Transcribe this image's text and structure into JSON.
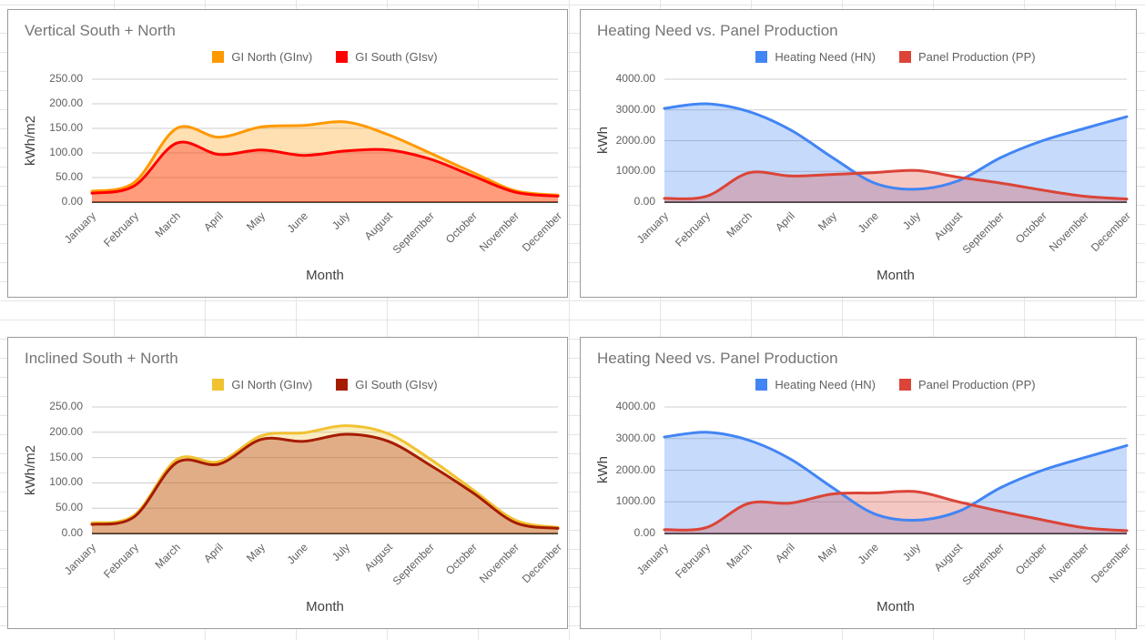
{
  "months": [
    "January",
    "February",
    "March",
    "April",
    "May",
    "June",
    "July",
    "August",
    "September",
    "October",
    "November",
    "December"
  ],
  "chart_data": [
    {
      "position": "top-left",
      "type": "area",
      "title": "Vertical South + North",
      "xlabel": "Month",
      "ylabel": "kWh/m2",
      "y_ticks": [
        "250.00",
        "200.00",
        "150.00",
        "100.00",
        "50.00",
        "0.00"
      ],
      "y_max": 250,
      "ylim": [
        0,
        250
      ],
      "grid": true,
      "legend_position": "top",
      "categories": [
        "January",
        "February",
        "March",
        "April",
        "May",
        "June",
        "July",
        "August",
        "September",
        "October",
        "November",
        "December"
      ],
      "series": [
        {
          "name": "GI North (GInv)",
          "color": "#FF9900",
          "fill_opacity": 0.3,
          "values": [
            22,
            40,
            150,
            132,
            153,
            156,
            163,
            137,
            99,
            60,
            23,
            14
          ]
        },
        {
          "name": "GI South (GIsv)",
          "color": "#FF0000",
          "fill_opacity": 0.3,
          "values": [
            18,
            33,
            120,
            97,
            106,
            95,
            104,
            106,
            87,
            53,
            20,
            12
          ]
        }
      ]
    },
    {
      "position": "top-right",
      "type": "area",
      "title": "Heating Need vs. Panel Production",
      "xlabel": "Month",
      "ylabel": "kWh",
      "y_ticks": [
        "4000.00",
        "3000.00",
        "2000.00",
        "1000.00",
        "0.00"
      ],
      "y_max": 4000,
      "ylim": [
        0,
        4000
      ],
      "grid": true,
      "legend_position": "top",
      "categories": [
        "January",
        "February",
        "March",
        "April",
        "May",
        "June",
        "July",
        "August",
        "September",
        "October",
        "November",
        "December"
      ],
      "series": [
        {
          "name": "Heating Need (HN)",
          "color": "#4285F4",
          "fill_opacity": 0.3,
          "values": [
            3050,
            3200,
            2950,
            2350,
            1450,
            620,
            420,
            700,
            1450,
            2000,
            2400,
            2780
          ]
        },
        {
          "name": "Panel Production (PP)",
          "color": "#DB4437",
          "fill_opacity": 0.3,
          "values": [
            120,
            190,
            950,
            850,
            900,
            960,
            1030,
            810,
            620,
            390,
            190,
            100
          ]
        }
      ]
    },
    {
      "position": "bottom-left",
      "type": "area",
      "title": "Inclined South + North",
      "xlabel": "Month",
      "ylabel": "kWh/m2",
      "y_ticks": [
        "250.00",
        "200.00",
        "150.00",
        "100.00",
        "50.00",
        "0.00"
      ],
      "y_max": 250,
      "ylim": [
        0,
        250
      ],
      "grid": true,
      "legend_position": "top",
      "categories": [
        "January",
        "February",
        "March",
        "April",
        "May",
        "June",
        "July",
        "August",
        "September",
        "October",
        "November",
        "December"
      ],
      "series": [
        {
          "name": "GI North (GInv)",
          "color": "#F1C232",
          "fill_opacity": 0.3,
          "values": [
            21,
            36,
            146,
            142,
            193,
            199,
            213,
            197,
            146,
            86,
            26,
            12
          ]
        },
        {
          "name": "GI South (GIsv)",
          "color": "#A61C00",
          "fill_opacity": 0.3,
          "values": [
            18,
            33,
            140,
            137,
            186,
            182,
            196,
            182,
            134,
            80,
            21,
            10
          ]
        }
      ]
    },
    {
      "position": "bottom-right",
      "type": "area",
      "title": "Heating Need vs. Panel Production",
      "xlabel": "Month",
      "ylabel": "kWh",
      "y_ticks": [
        "4000.00",
        "3000.00",
        "2000.00",
        "1000.00",
        "0.00"
      ],
      "y_max": 4000,
      "ylim": [
        0,
        4000
      ],
      "grid": true,
      "legend_position": "top",
      "categories": [
        "January",
        "February",
        "March",
        "April",
        "May",
        "June",
        "July",
        "August",
        "September",
        "October",
        "November",
        "December"
      ],
      "series": [
        {
          "name": "Heating Need (HN)",
          "color": "#4285F4",
          "fill_opacity": 0.3,
          "values": [
            3050,
            3200,
            2950,
            2350,
            1450,
            620,
            420,
            700,
            1450,
            2000,
            2400,
            2780
          ]
        },
        {
          "name": "Panel Production (PP)",
          "color": "#DB4437",
          "fill_opacity": 0.3,
          "values": [
            120,
            190,
            950,
            960,
            1250,
            1280,
            1320,
            1000,
            700,
            430,
            180,
            90
          ]
        }
      ]
    }
  ],
  "style": {
    "gridline_color": "#cccccc",
    "axis_line_color": "#424242",
    "title_color": "#757575",
    "tick_label_color": "#616161",
    "card_border_color": "#9b9b9b",
    "sheet_gridline_color": "#e3e5e8"
  }
}
